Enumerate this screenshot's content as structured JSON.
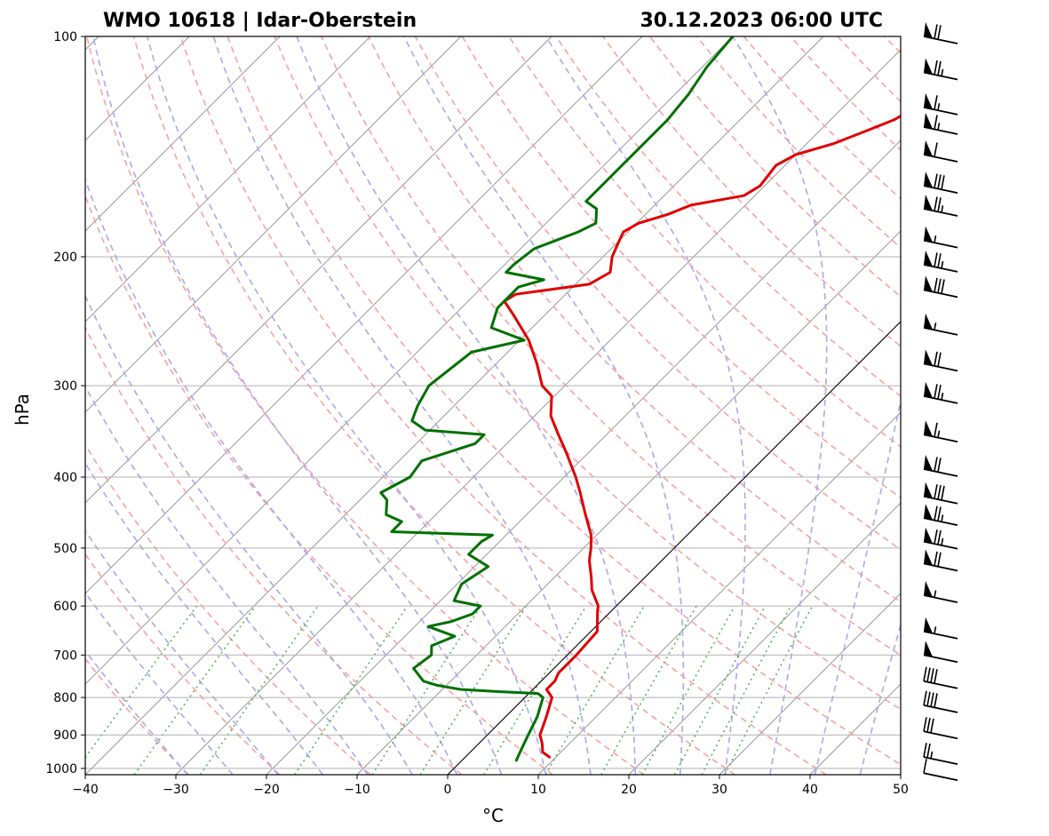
{
  "chart_data": {
    "type": "line",
    "subtype": "skew-t log-p sounding",
    "title_left": "WMO 10618 | Idar-Oberstein",
    "title_right": "30.12.2023 06:00 UTC",
    "xlabel": "°C",
    "ylabel": "hPa",
    "xlim": [
      -40,
      50
    ],
    "ylim": [
      1020,
      100
    ],
    "x_ticks": [
      -40,
      -30,
      -20,
      -10,
      0,
      10,
      20,
      30,
      40,
      50
    ],
    "x_tick_labels": [
      "−40",
      "−30",
      "−20",
      "−10",
      "0",
      "10",
      "20",
      "30",
      "40",
      "50"
    ],
    "y_ticks": [
      100,
      200,
      300,
      400,
      500,
      600,
      700,
      800,
      900,
      1000
    ],
    "y_tick_labels": [
      "100",
      "200",
      "300",
      "400",
      "500",
      "600",
      "700",
      "800",
      "900",
      "1000"
    ],
    "grid": true,
    "colors": {
      "temperature": "#e00000",
      "dewpoint": "#007000",
      "dry_adiabats": "#f4a3a3",
      "moist_adiabats": "#a8a8f0",
      "mixing_ratio": "#59b259",
      "isotherms": "#8c8c8c",
      "grid": "#b0b0b0",
      "reference_isotherm": "#000000",
      "wind_barbs": "#000000"
    },
    "series": [
      {
        "name": "Temperature",
        "color": "#e00000",
        "points": [
          [
            965,
            9.3
          ],
          [
            950,
            8.0
          ],
          [
            925,
            7.0
          ],
          [
            900,
            5.8
          ],
          [
            850,
            4.5
          ],
          [
            800,
            3.0
          ],
          [
            780,
            1.5
          ],
          [
            760,
            1.5
          ],
          [
            740,
            1.0
          ],
          [
            700,
            1.0
          ],
          [
            650,
            0.7
          ],
          [
            610,
            -1.5
          ],
          [
            600,
            -2.0
          ],
          [
            570,
            -4.5
          ],
          [
            550,
            -5.8
          ],
          [
            520,
            -8.0
          ],
          [
            500,
            -9.2
          ],
          [
            480,
            -10.6
          ],
          [
            450,
            -13.5
          ],
          [
            420,
            -16.5
          ],
          [
            400,
            -18.7
          ],
          [
            370,
            -22.5
          ],
          [
            350,
            -25.3
          ],
          [
            330,
            -28.2
          ],
          [
            310,
            -30.3
          ],
          [
            300,
            -32.5
          ],
          [
            280,
            -35.5
          ],
          [
            260,
            -39.0
          ],
          [
            240,
            -43.5
          ],
          [
            230,
            -46.0
          ],
          [
            225,
            -45.5
          ],
          [
            222,
            -42.5
          ],
          [
            218,
            -38.5
          ],
          [
            210,
            -37.5
          ],
          [
            200,
            -39.0
          ],
          [
            190,
            -40.0
          ],
          [
            185,
            -40.5
          ],
          [
            180,
            -39.8
          ],
          [
            175,
            -37.5
          ],
          [
            170,
            -36.0
          ],
          [
            165,
            -31.2
          ],
          [
            160,
            -30.5
          ],
          [
            150,
            -31.0
          ],
          [
            145,
            -30.0
          ],
          [
            140,
            -27.0
          ],
          [
            135,
            -25.0
          ],
          [
            130,
            -23.0
          ],
          [
            125,
            -22.0
          ],
          [
            120,
            -22.0
          ],
          [
            115,
            -22.5
          ],
          [
            110,
            -22.2
          ],
          [
            105,
            -21.5
          ],
          [
            100,
            -21.0
          ]
        ]
      },
      {
        "name": "Dewpoint",
        "color": "#007000",
        "points": [
          [
            975,
            6.0
          ],
          [
            950,
            5.5
          ],
          [
            925,
            5.0
          ],
          [
            900,
            4.5
          ],
          [
            850,
            3.5
          ],
          [
            800,
            2.0
          ],
          [
            790,
            1.0
          ],
          [
            785,
            -4.0
          ],
          [
            780,
            -8.0
          ],
          [
            770,
            -11.0
          ],
          [
            760,
            -13.0
          ],
          [
            730,
            -15.5
          ],
          [
            700,
            -15.0
          ],
          [
            680,
            -16.0
          ],
          [
            660,
            -14.5
          ],
          [
            640,
            -18.5
          ],
          [
            630,
            -16.5
          ],
          [
            615,
            -15.0
          ],
          [
            600,
            -15.0
          ],
          [
            590,
            -18.5
          ],
          [
            560,
            -19.5
          ],
          [
            530,
            -18.5
          ],
          [
            510,
            -22.0
          ],
          [
            490,
            -22.0
          ],
          [
            480,
            -21.5
          ],
          [
            475,
            -33.0
          ],
          [
            470,
            -33.0
          ],
          [
            460,
            -33.0
          ],
          [
            450,
            -35.5
          ],
          [
            430,
            -37.0
          ],
          [
            420,
            -38.5
          ],
          [
            400,
            -37.0
          ],
          [
            380,
            -37.5
          ],
          [
            360,
            -33.5
          ],
          [
            350,
            -33.5
          ],
          [
            345,
            -40.5
          ],
          [
            335,
            -43.0
          ],
          [
            320,
            -44.0
          ],
          [
            300,
            -45.0
          ],
          [
            270,
            -44.0
          ],
          [
            260,
            -39.5
          ],
          [
            250,
            -44.5
          ],
          [
            235,
            -46.0
          ],
          [
            220,
            -46.0
          ],
          [
            215,
            -44.0
          ],
          [
            210,
            -49.0
          ],
          [
            205,
            -49.0
          ],
          [
            195,
            -48.5
          ],
          [
            185,
            -45.5
          ],
          [
            180,
            -44.5
          ],
          [
            172,
            -46.0
          ],
          [
            168,
            -48.0
          ],
          [
            160,
            -48.0
          ],
          [
            150,
            -48.0
          ],
          [
            140,
            -48.0
          ],
          [
            130,
            -48.0
          ],
          [
            120,
            -48.5
          ],
          [
            110,
            -49.5
          ],
          [
            100,
            -50.0
          ]
        ]
      }
    ],
    "reference_isotherm_c": 0,
    "wind_barbs": [
      {
        "p": 100,
        "speed_kt": 70
      },
      {
        "p": 112,
        "speed_kt": 75
      },
      {
        "p": 125,
        "speed_kt": 65
      },
      {
        "p": 133,
        "speed_kt": 65
      },
      {
        "p": 145,
        "speed_kt": 60
      },
      {
        "p": 160,
        "speed_kt": 80
      },
      {
        "p": 172,
        "speed_kt": 75
      },
      {
        "p": 190,
        "speed_kt": 55
      },
      {
        "p": 205,
        "speed_kt": 75
      },
      {
        "p": 222,
        "speed_kt": 80
      },
      {
        "p": 250,
        "speed_kt": 55
      },
      {
        "p": 280,
        "speed_kt": 70
      },
      {
        "p": 310,
        "speed_kt": 75
      },
      {
        "p": 350,
        "speed_kt": 65
      },
      {
        "p": 390,
        "speed_kt": 70
      },
      {
        "p": 425,
        "speed_kt": 80
      },
      {
        "p": 455,
        "speed_kt": 75
      },
      {
        "p": 490,
        "speed_kt": 75
      },
      {
        "p": 525,
        "speed_kt": 70
      },
      {
        "p": 580,
        "speed_kt": 55
      },
      {
        "p": 650,
        "speed_kt": 55
      },
      {
        "p": 700,
        "speed_kt": 50
      },
      {
        "p": 760,
        "speed_kt": 40
      },
      {
        "p": 820,
        "speed_kt": 40
      },
      {
        "p": 890,
        "speed_kt": 30
      },
      {
        "p": 965,
        "speed_kt": 25
      },
      {
        "p": 1015,
        "speed_kt": 10
      }
    ]
  }
}
